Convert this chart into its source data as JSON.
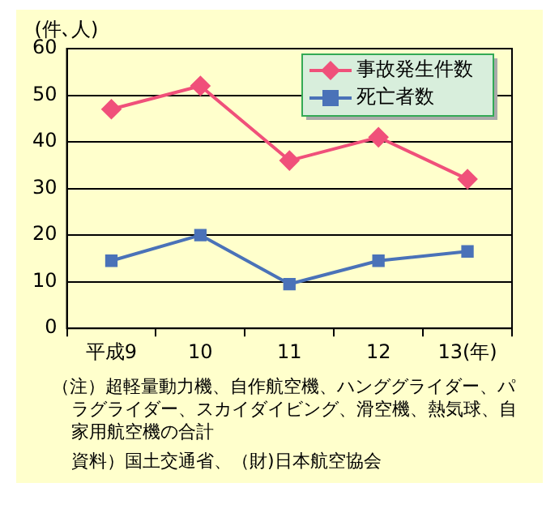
{
  "chart_data": {
    "type": "line",
    "ylabel": "(件､人)",
    "categories": [
      "平成9",
      "10",
      "11",
      "12",
      "13(年)"
    ],
    "series": [
      {
        "name": "事故発生件数",
        "color": "#f0507a",
        "values": [
          47,
          52,
          36,
          41,
          32
        ],
        "marker": "diamond"
      },
      {
        "name": "死亡者数",
        "color": "#4a72b8",
        "values": [
          14.5,
          20,
          9.5,
          14.5,
          16.5
        ],
        "marker": "square"
      }
    ],
    "ylim": [
      0,
      60
    ],
    "yticks": [
      0,
      10,
      20,
      30,
      40,
      50,
      60
    ],
    "grid": "y",
    "legend": "top right",
    "annotations": [
      "（注）超軽量動力機、自作航空機、ハンググライダー、パラグライダー、スカイダイビング、滑空機、熱気球、自家用航空機の合計",
      "資料）国土交通省、（財)日本航空協会"
    ]
  }
}
